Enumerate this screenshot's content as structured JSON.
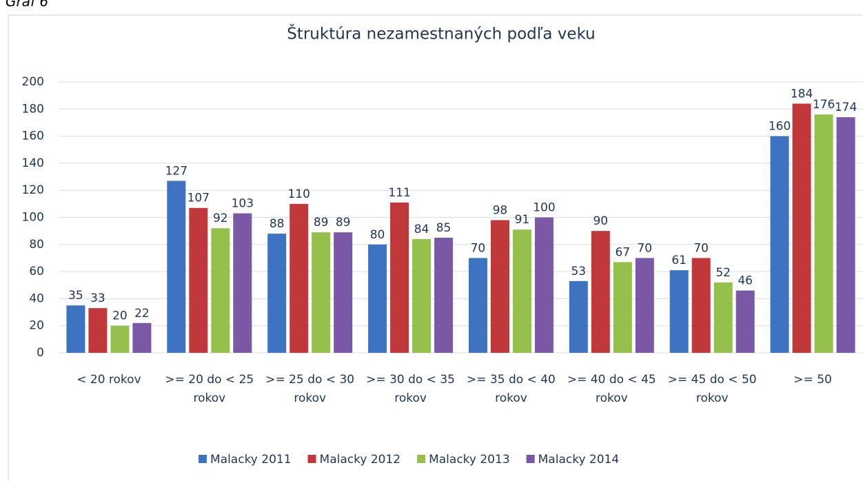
{
  "caption": "Graf 6",
  "chart_data": {
    "type": "bar",
    "title": "Štruktúra nezamestnaných podľa veku",
    "categories": [
      "< 20 rokov",
      ">= 20 do < 25 rokov",
      ">= 25 do < 30 rokov",
      ">= 30 do < 35 rokov",
      ">= 35 do < 40 rokov",
      ">= 40 do < 45 rokov",
      ">= 45 do < 50 rokov",
      ">= 50"
    ],
    "series": [
      {
        "name": "Malacky 2011",
        "color": "#3d73c0",
        "values": [
          35,
          127,
          88,
          80,
          70,
          53,
          61,
          160
        ]
      },
      {
        "name": "Malacky 2012",
        "color": "#c0383a",
        "values": [
          33,
          107,
          110,
          111,
          98,
          90,
          70,
          184
        ]
      },
      {
        "name": "Malacky 2013",
        "color": "#95c04c",
        "values": [
          20,
          92,
          89,
          84,
          91,
          67,
          52,
          176
        ]
      },
      {
        "name": "Malacky 2014",
        "color": "#7a58a6",
        "values": [
          22,
          103,
          89,
          85,
          100,
          70,
          46,
          174
        ]
      }
    ],
    "ylim": [
      0,
      200
    ],
    "yticks": [
      0,
      20,
      40,
      60,
      80,
      100,
      120,
      140,
      160,
      180,
      200
    ],
    "grid": true,
    "legend": "bottom"
  }
}
